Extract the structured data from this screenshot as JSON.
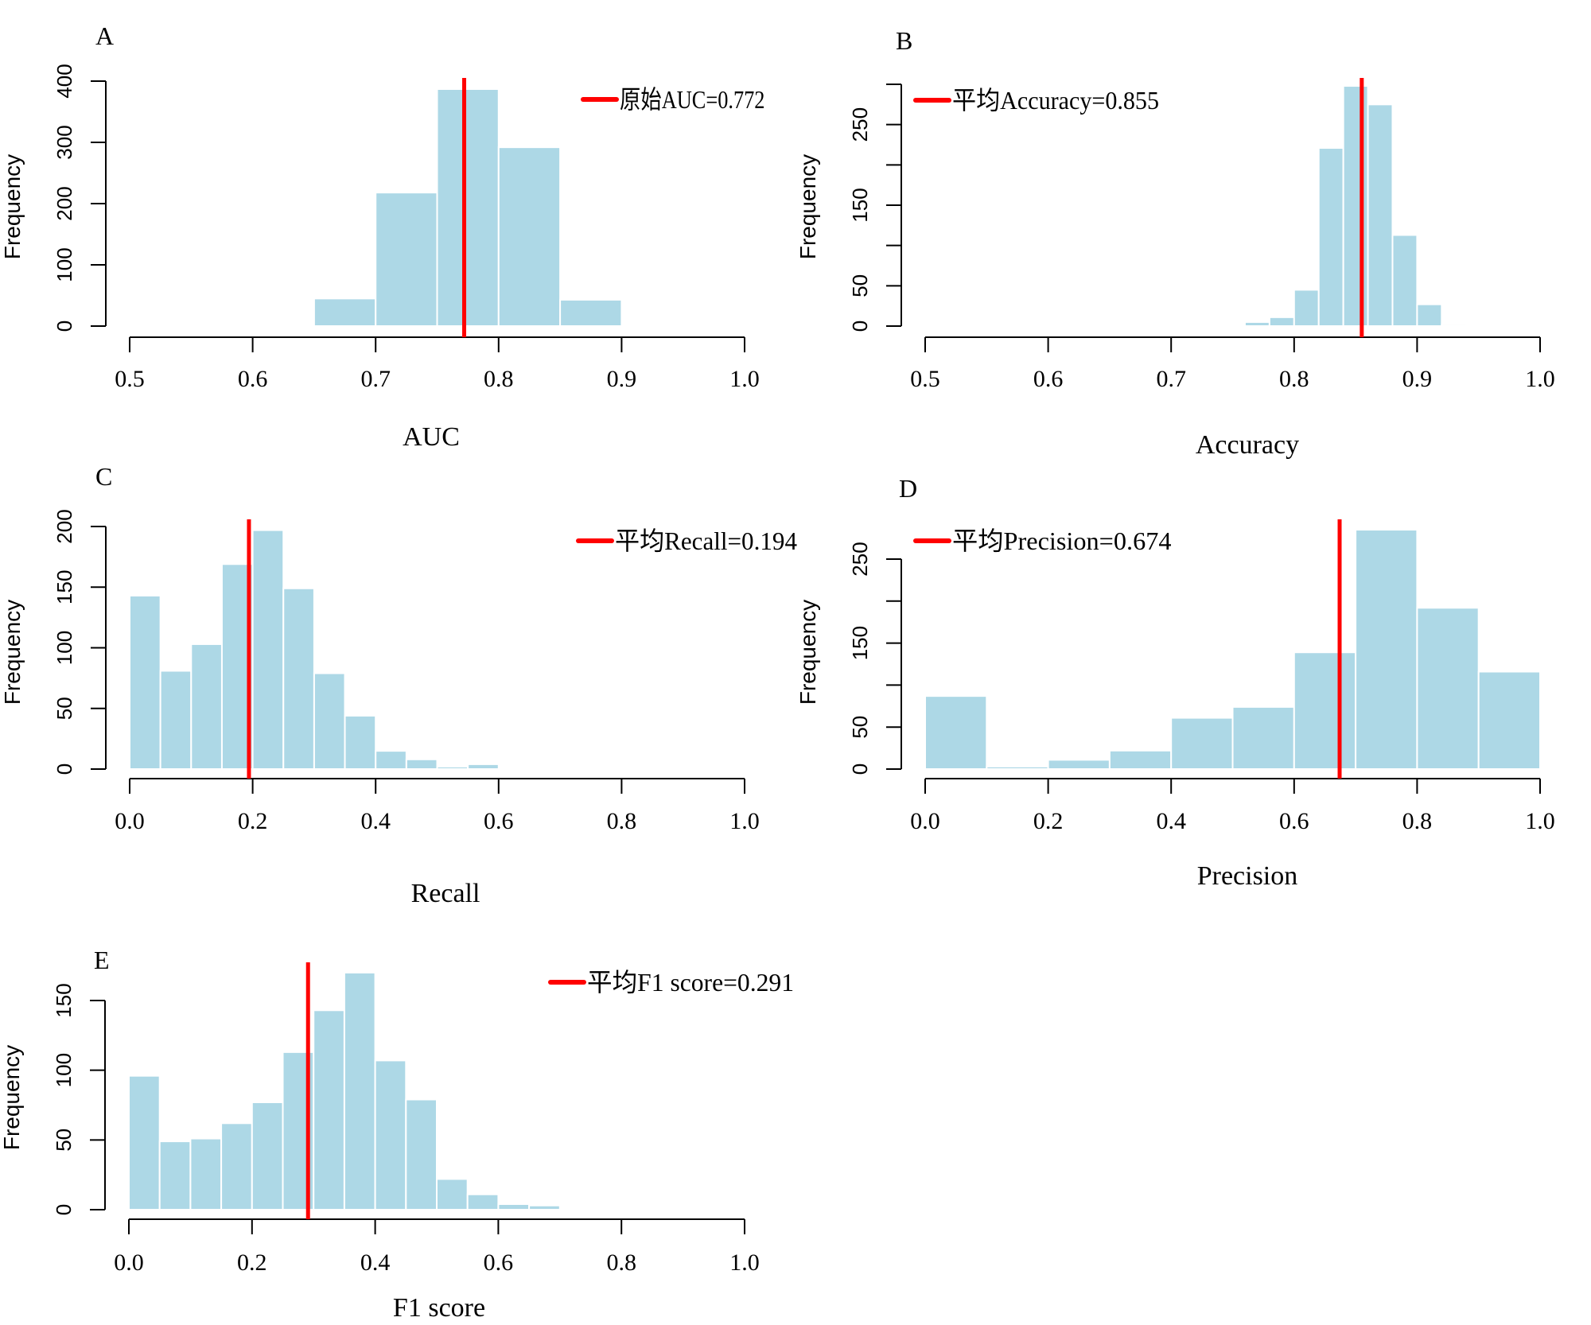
{
  "style": {
    "bar_fill": "#ADD8E6",
    "bar_stroke": "#FFFFFF",
    "vline_color": "#FF0000",
    "axis_color": "#000000"
  },
  "chart_data": [
    {
      "type": "bar",
      "panel": "A",
      "xlabel": "AUC",
      "ylabel": "Frequency",
      "xlim": [
        0.5,
        1.0
      ],
      "x_ticks": [
        "0.5",
        "0.6",
        "0.7",
        "0.8",
        "0.9",
        "1.0"
      ],
      "ylim": [
        0,
        400
      ],
      "y_ticks": [
        0,
        100,
        200,
        300,
        400
      ],
      "y_tick_labels": [
        "0",
        "100",
        "200",
        "300",
        "400"
      ],
      "bin_edges": [
        0.65,
        0.7,
        0.75,
        0.8,
        0.85,
        0.9
      ],
      "values": [
        45,
        218,
        387,
        292,
        43
      ],
      "vline": 0.772,
      "legend": "原始AUC=0.772",
      "legend_position": "top-right",
      "grid": false
    },
    {
      "type": "bar",
      "panel": "B",
      "xlabel": "Accuracy",
      "ylabel": "Frequency",
      "xlim": [
        0.5,
        1.0
      ],
      "x_ticks": [
        "0.5",
        "0.6",
        "0.7",
        "0.8",
        "0.9",
        "1.0"
      ],
      "ylim": [
        0,
        300
      ],
      "y_ticks": [
        0,
        50,
        100,
        150,
        200,
        250,
        300
      ],
      "y_tick_labels": [
        "0",
        "50",
        "",
        "150",
        "",
        "250",
        ""
      ],
      "bin_edges": [
        0.76,
        0.78,
        0.8,
        0.82,
        0.84,
        0.86,
        0.88,
        0.9,
        0.92,
        0.94
      ],
      "values": [
        5,
        11,
        45,
        221,
        298,
        275,
        113,
        27,
        2
      ],
      "vline": 0.855,
      "legend": "平均Accuracy=0.855",
      "legend_position": "top-left",
      "grid": false
    },
    {
      "type": "bar",
      "panel": "C",
      "xlabel": "Recall",
      "ylabel": "Frequency",
      "xlim": [
        0.0,
        1.0
      ],
      "x_ticks": [
        "0.0",
        "0.2",
        "0.4",
        "0.6",
        "0.8",
        "1.0"
      ],
      "ylim": [
        0,
        200
      ],
      "y_ticks": [
        0,
        50,
        100,
        150,
        200
      ],
      "y_tick_labels": [
        "0",
        "50",
        "100",
        "150",
        "200"
      ],
      "bin_edges": [
        0.0,
        0.05,
        0.1,
        0.15,
        0.2,
        0.25,
        0.3,
        0.35,
        0.4,
        0.45,
        0.5,
        0.55,
        0.6
      ],
      "values": [
        143,
        81,
        103,
        169,
        197,
        149,
        79,
        44,
        15,
        8,
        2,
        4
      ],
      "vline": 0.194,
      "legend": "平均Recall=0.194",
      "legend_position": "top-right",
      "grid": false
    },
    {
      "type": "bar",
      "panel": "D",
      "xlabel": "Precision",
      "ylabel": "Frequency",
      "xlim": [
        0.0,
        1.0
      ],
      "x_ticks": [
        "0.0",
        "0.2",
        "0.4",
        "0.6",
        "0.8",
        "1.0"
      ],
      "ylim": [
        0,
        250
      ],
      "y_ticks": [
        0,
        50,
        100,
        150,
        200,
        250
      ],
      "y_tick_labels": [
        "0",
        "50",
        "",
        "150",
        "",
        "250"
      ],
      "bin_edges": [
        0.0,
        0.1,
        0.2,
        0.3,
        0.4,
        0.5,
        0.6,
        0.7,
        0.8,
        0.9,
        1.0
      ],
      "values": [
        87,
        3,
        11,
        22,
        61,
        74,
        139,
        285,
        192,
        116
      ],
      "vline": 0.674,
      "legend": "平均Precision=0.674",
      "legend_position": "top-left",
      "grid": false
    },
    {
      "type": "bar",
      "panel": "E",
      "xlabel": "F1 score",
      "ylabel": "Frequency",
      "xlim": [
        0.0,
        1.0
      ],
      "x_ticks": [
        "0.0",
        "0.2",
        "0.4",
        "0.6",
        "0.8",
        "1.0"
      ],
      "ylim": [
        0,
        150
      ],
      "y_ticks": [
        0,
        50,
        100,
        150
      ],
      "y_tick_labels": [
        "0",
        "50",
        "100",
        "150"
      ],
      "bin_edges": [
        0.0,
        0.05,
        0.1,
        0.15,
        0.2,
        0.25,
        0.3,
        0.35,
        0.4,
        0.45,
        0.5,
        0.55,
        0.6,
        0.65,
        0.7
      ],
      "values": [
        96,
        49,
        51,
        62,
        77,
        113,
        143,
        170,
        107,
        79,
        22,
        11,
        4,
        3
      ],
      "vline": 0.291,
      "legend": "平均F1 score=0.291",
      "legend_position": "top-right",
      "grid": false
    }
  ]
}
